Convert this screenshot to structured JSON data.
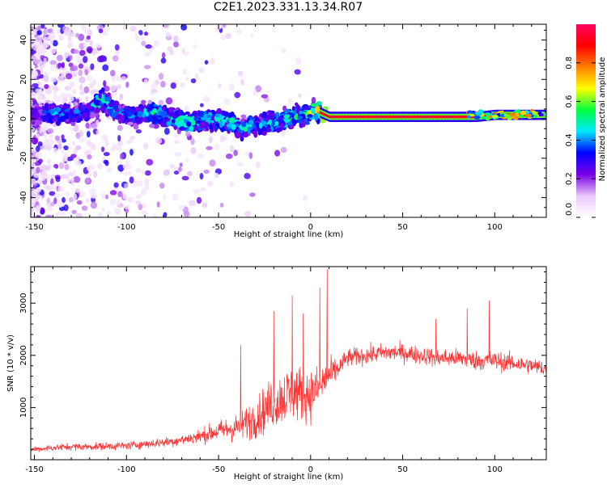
{
  "figure": {
    "title": "C2E1.2023.331.13.34.R07"
  },
  "chart_data": [
    {
      "type": "heatmap",
      "xlabel": "Height of straight line (km)",
      "ylabel": "Frequency (Hz)",
      "xlim": [
        -152,
        128
      ],
      "ylim": [
        -50,
        48
      ],
      "xticks": [
        -150,
        -100,
        -50,
        0,
        50,
        100
      ],
      "yticks": [
        -40,
        -20,
        0,
        20,
        40
      ],
      "colorbar": {
        "label": "Normalized spectral amplitude",
        "ticks": [
          0.0,
          0.2,
          0.4,
          0.6,
          0.8
        ],
        "tick_labels": [
          "0.0",
          "0.2",
          "0.4",
          "0.6",
          "0.8"
        ],
        "range": [
          0,
          1
        ],
        "colormap": [
          "#ffffff",
          "#e8c8f8",
          "#7a00e8",
          "#0000ff",
          "#00e8ff",
          "#00ff40",
          "#ffff00",
          "#ff8000",
          "#ff0000",
          "#ff0060"
        ]
      },
      "ridge": [
        {
          "x": -150,
          "freq": 2,
          "amp": 0.3
        },
        {
          "x": -140,
          "freq": 3,
          "amp": 0.45
        },
        {
          "x": -130,
          "freq": 2,
          "amp": 0.4
        },
        {
          "x": -120,
          "freq": 4,
          "amp": 0.4
        },
        {
          "x": -114,
          "freq": 10,
          "amp": 0.55
        },
        {
          "x": -105,
          "freq": 3,
          "amp": 0.4
        },
        {
          "x": -95,
          "freq": 2,
          "amp": 0.45
        },
        {
          "x": -85,
          "freq": 3,
          "amp": 0.5
        },
        {
          "x": -75,
          "freq": 0,
          "amp": 0.5
        },
        {
          "x": -65,
          "freq": -2,
          "amp": 0.55
        },
        {
          "x": -55,
          "freq": 0,
          "amp": 0.45
        },
        {
          "x": -45,
          "freq": -1,
          "amp": 0.5
        },
        {
          "x": -38,
          "freq": -5,
          "amp": 0.5
        },
        {
          "x": -30,
          "freq": -3,
          "amp": 0.45
        },
        {
          "x": -20,
          "freq": -2,
          "amp": 0.5
        },
        {
          "x": -10,
          "freq": 1,
          "amp": 0.55
        },
        {
          "x": -3,
          "freq": 2,
          "amp": 0.55
        },
        {
          "x": 3,
          "freq": 4,
          "amp": 0.7
        },
        {
          "x": 10,
          "freq": 1,
          "amp": 0.95
        },
        {
          "x": 50,
          "freq": 1,
          "amp": 0.95
        },
        {
          "x": 90,
          "freq": 1,
          "amp": 0.95
        },
        {
          "x": 100,
          "freq": 2,
          "amp": 0.9
        },
        {
          "x": 110,
          "freq": 2,
          "amp": 0.9
        },
        {
          "x": 120,
          "freq": 2,
          "amp": 0.9
        },
        {
          "x": 128,
          "freq": 2,
          "amp": 0.9
        }
      ]
    },
    {
      "type": "line",
      "xlabel": "Height of straight line (km)",
      "ylabel": "SNR (10 * v/v)",
      "xlim": [
        -152,
        128
      ],
      "ylim": [
        0,
        3700
      ],
      "xticks": [
        -150,
        -100,
        -50,
        0,
        50,
        100
      ],
      "yticks": [
        1000,
        2000,
        3000
      ],
      "color": "#ff3030",
      "series": [
        {
          "x": [
            -150,
            -140,
            -130,
            -120,
            -110,
            -100,
            -90,
            -80,
            -70,
            -60,
            -50,
            -40,
            -30,
            -20,
            -10,
            0,
            5,
            10,
            15,
            20,
            30,
            40,
            50,
            60,
            70,
            80,
            90,
            100,
            110,
            120,
            128
          ],
          "values": [
            200,
            230,
            250,
            250,
            260,
            270,
            300,
            330,
            380,
            450,
            550,
            620,
            800,
            1100,
            1300,
            1250,
            1400,
            1600,
            1750,
            1950,
            2000,
            2050,
            2050,
            2000,
            1950,
            1950,
            1900,
            1900,
            1850,
            1800,
            1750
          ],
          "noise": [
            80,
            90,
            100,
            100,
            110,
            110,
            120,
            130,
            150,
            200,
            280,
            380,
            550,
            700,
            800,
            700,
            600,
            500,
            300,
            250,
            250,
            250,
            250,
            250,
            250,
            250,
            270,
            270,
            250,
            230,
            230
          ]
        }
      ],
      "peaks": [
        {
          "x": -38,
          "y": 2200
        },
        {
          "x": -20,
          "y": 2850
        },
        {
          "x": -10,
          "y": 3150
        },
        {
          "x": -4,
          "y": 2800
        },
        {
          "x": 5,
          "y": 3300
        },
        {
          "x": 9,
          "y": 3650
        },
        {
          "x": 97,
          "y": 3050
        },
        {
          "x": 85,
          "y": 2900
        },
        {
          "x": 68,
          "y": 2700
        }
      ]
    }
  ]
}
